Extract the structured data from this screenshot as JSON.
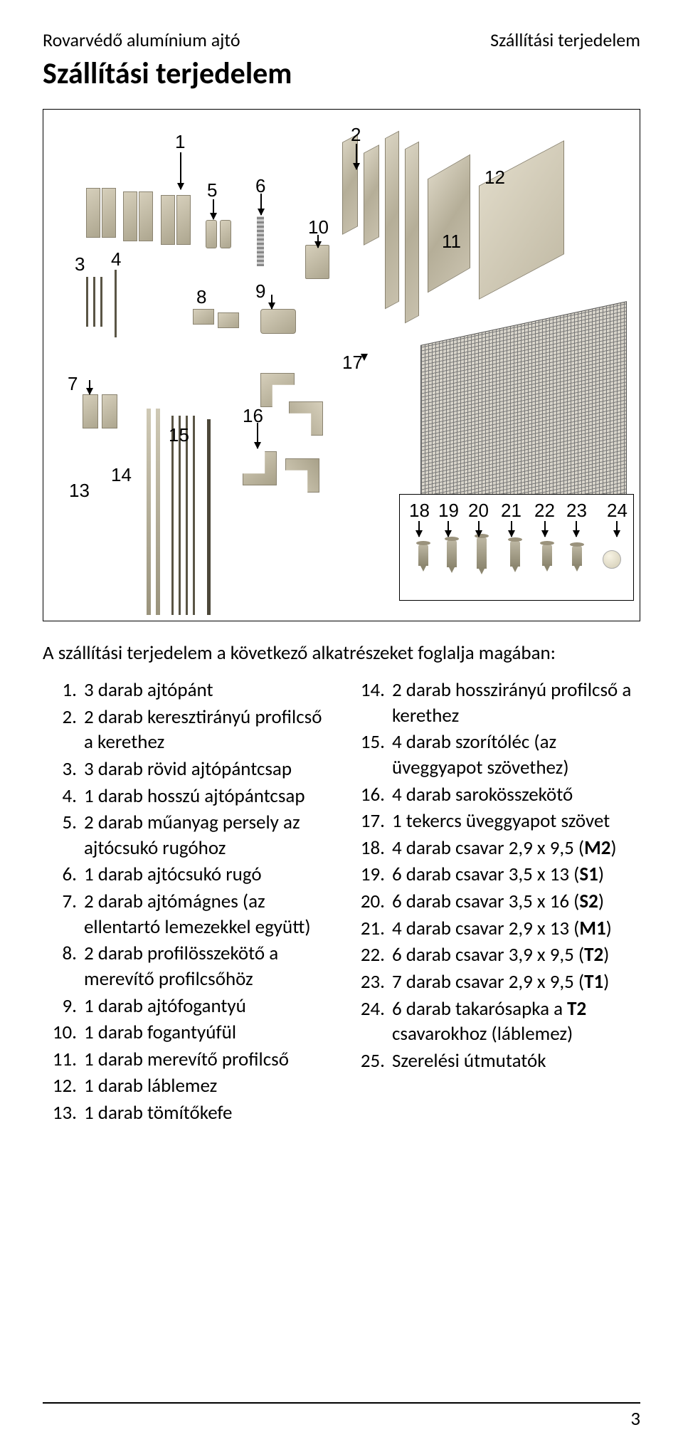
{
  "header": {
    "left": "Rovarvédő alumínium ajtó",
    "right": "Szállítási terjedelem"
  },
  "title": "Szállítási terjedelem",
  "intro": "A szállítási terjedelem a következő alkatrészeket foglalja magában:",
  "diagram_labels": {
    "l1": "1",
    "l2": "2",
    "l3": "3",
    "l4": "4",
    "l5": "5",
    "l6": "6",
    "l7": "7",
    "l8": "8",
    "l9": "9",
    "l10": "10",
    "l11": "11",
    "l12": "12",
    "l13": "13",
    "l14": "14",
    "l15": "15",
    "l16": "16",
    "l17": "17",
    "l18": "18",
    "l19": "19",
    "l20": "20",
    "l21": "21",
    "l22": "22",
    "l23": "23",
    "l24": "24"
  },
  "left_items": [
    {
      "n": "1.",
      "t": "3 darab ajtópánt"
    },
    {
      "n": "2.",
      "t": "2 darab keresztirányú profilcső a kerethez"
    },
    {
      "n": "3.",
      "t": "3 darab rövid ajtópántcsap"
    },
    {
      "n": "4.",
      "t": "1 darab hosszú ajtópántcsap"
    },
    {
      "n": "5.",
      "t": "2 darab műanyag persely az ajtócsukó rugóhoz"
    },
    {
      "n": "6.",
      "t": "1 darab ajtócsukó rugó"
    },
    {
      "n": "7.",
      "t": "2 darab ajtómágnes (az ellentartó lemezekkel együtt)"
    },
    {
      "n": "8.",
      "t": "2 darab profilösszekötő a merevítő profilcsőhöz"
    },
    {
      "n": "9.",
      "t": "1 darab ajtófogantyú"
    },
    {
      "n": "10.",
      "t": "1 darab fogantyúfül"
    },
    {
      "n": "11.",
      "t": "1 darab merevítő profilcső"
    },
    {
      "n": "12.",
      "t": "1 darab láblemez"
    },
    {
      "n": "13.",
      "t": "1 darab tömítőkefe"
    }
  ],
  "right_items": [
    {
      "n": "14.",
      "t": "2 darab hosszirányú profilcső a kerethez"
    },
    {
      "n": "15.",
      "t": "4 darab szorítóléc (az üveggyapot szövethez)"
    },
    {
      "n": "16.",
      "t": "4 darab sarokösszekötő"
    },
    {
      "n": "17.",
      "t": "1 tekercs üveggyapot szövet"
    },
    {
      "n": "18.",
      "t": "4 darab csavar 2,9 x 9,5 (<b>M2</b>)"
    },
    {
      "n": "19.",
      "t": "6 darab csavar 3,5 x 13 (<b>S1</b>)"
    },
    {
      "n": "20.",
      "t": "6 darab csavar 3,5 x 16 (<b>S2</b>)"
    },
    {
      "n": "21.",
      "t": "4 darab csavar 2,9 x 13 (<b>M1</b>)"
    },
    {
      "n": "22.",
      "t": "6 darab csavar 3,9 x 9,5 (<b>T2</b>)"
    },
    {
      "n": "23.",
      "t": "7 darab csavar 2,9 x 9,5 (<b>T1</b>)"
    },
    {
      "n": "24.",
      "t": "6 darab takarósapka a <b>T2</b> csavarokhoz (láblemez)"
    },
    {
      "n": "25.",
      "t": "Szerelési útmutatók"
    }
  ],
  "page_number": "3",
  "colors": {
    "text": "#000000",
    "metal_light": "#d6cfbb",
    "metal_dark": "#a8a189",
    "border": "#8a8370",
    "mesh": "#777777"
  }
}
